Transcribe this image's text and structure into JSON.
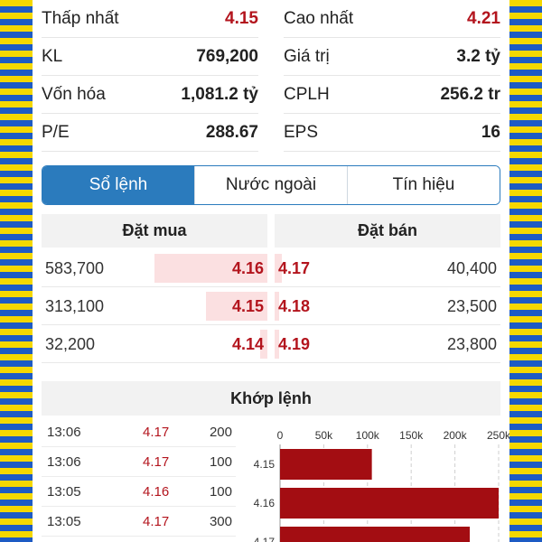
{
  "stats": [
    [
      {
        "label": "Thấp nhất",
        "value": "4.15",
        "red": true
      },
      {
        "label": "Cao nhất",
        "value": "4.21",
        "red": true
      }
    ],
    [
      {
        "label": "KL",
        "value": "769,200"
      },
      {
        "label": "Giá trị",
        "value": "3.2 tỷ"
      }
    ],
    [
      {
        "label": "Vốn hóa",
        "value": "1,081.2 tỷ"
      },
      {
        "label": "CPLH",
        "value": "256.2 tr"
      }
    ],
    [
      {
        "label": "P/E",
        "value": "288.67"
      },
      {
        "label": "EPS",
        "value": "16"
      }
    ]
  ],
  "tabs": [
    {
      "label": "Sổ lệnh",
      "active": true
    },
    {
      "label": "Nước ngoài",
      "active": false
    },
    {
      "label": "Tín hiệu",
      "active": false
    }
  ],
  "order_book": {
    "buy_header": "Đặt mua",
    "sell_header": "Đặt bán",
    "rows": [
      {
        "buy_volume": "583,700",
        "buy_price": "4.16",
        "buy_share": 0.5,
        "sell_price": "4.17",
        "sell_volume": "40,400",
        "sell_share": 0.03
      },
      {
        "buy_volume": "313,100",
        "buy_price": "4.15",
        "buy_share": 0.27,
        "sell_price": "4.18",
        "sell_volume": "23,500",
        "sell_share": 0.02
      },
      {
        "buy_volume": "32,200",
        "buy_price": "4.14",
        "buy_share": 0.03,
        "sell_price": "4.19",
        "sell_volume": "23,800",
        "sell_share": 0.02
      }
    ]
  },
  "matched": {
    "header": "Khớp lệnh",
    "rows": [
      {
        "time": "13:06",
        "price": "4.17",
        "volume": "200"
      },
      {
        "time": "13:06",
        "price": "4.17",
        "volume": "100"
      },
      {
        "time": "13:05",
        "price": "4.16",
        "volume": "100"
      },
      {
        "time": "13:05",
        "price": "4.17",
        "volume": "300"
      }
    ]
  },
  "chart_data": {
    "type": "bar",
    "orientation": "horizontal",
    "x_ticks": [
      "0",
      "50k",
      "100k",
      "150k",
      "200k",
      "250k"
    ],
    "xlim": [
      0,
      250000
    ],
    "categories": [
      "4.15",
      "4.16",
      "4.17"
    ],
    "values": [
      105000,
      250000,
      217000
    ],
    "bar_color": "#a30d12",
    "grid": true
  }
}
